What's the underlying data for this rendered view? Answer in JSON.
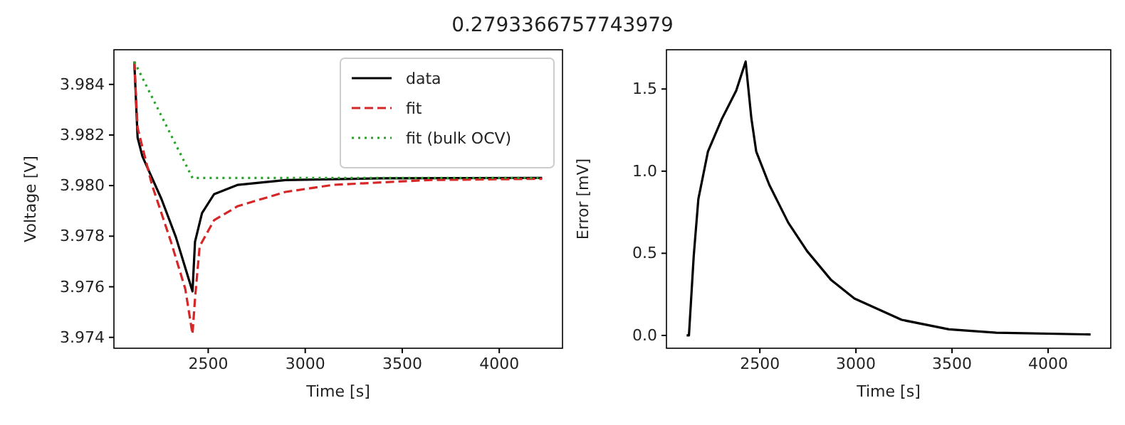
{
  "chart_data": [
    {
      "type": "line",
      "title": "0.2793366757743979",
      "xlabel": "Time [s]",
      "ylabel": "Voltage [V]",
      "xlim": [
        2014,
        4326
      ],
      "xticks": [
        2500,
        3000,
        3500,
        4000
      ],
      "ylim": [
        3.97357,
        3.98537
      ],
      "yticks": [
        {
          "value": 3.974,
          "label": "3.974"
        },
        {
          "value": 3.976,
          "label": "3.976"
        },
        {
          "value": 3.978,
          "label": "3.978"
        },
        {
          "value": 3.98,
          "label": "3.980"
        },
        {
          "value": 3.982,
          "label": "3.982"
        },
        {
          "value": 3.984,
          "label": "3.984"
        }
      ],
      "legend": "top right",
      "grid": false,
      "series": [
        {
          "name": "data",
          "color": "#000000",
          "line_style": "solid",
          "x": [
            2119,
            2136,
            2161,
            2259,
            2333,
            2419,
            2432,
            2468,
            2530,
            2653,
            2899,
            3391,
            4221
          ],
          "values": [
            3.9849,
            3.9819,
            3.98115,
            3.97947,
            3.97797,
            3.97582,
            3.97778,
            3.97891,
            3.97966,
            3.98003,
            3.98022,
            3.98029,
            3.9803
          ]
        },
        {
          "name": "fit",
          "color": "#d62728",
          "line_style": "dashed",
          "x": [
            2119,
            2136,
            2210,
            2308,
            2382,
            2419,
            2432,
            2456,
            2530,
            2653,
            2899,
            3145,
            3637,
            4221
          ],
          "values": [
            3.9849,
            3.98228,
            3.98003,
            3.97778,
            3.97591,
            3.97413,
            3.97554,
            3.9776,
            3.97863,
            3.97919,
            3.97975,
            3.98003,
            3.98022,
            3.98027
          ]
        },
        {
          "name": "fit (bulk OCV)",
          "color": "#2ca02c",
          "line_style": "dotted",
          "x": [
            2119,
            2419,
            4221
          ],
          "values": [
            3.9849,
            3.9803,
            3.9803
          ]
        }
      ]
    },
    {
      "type": "line",
      "xlabel": "Time [s]",
      "ylabel": "Error [mV]",
      "xlim": [
        2014,
        4326
      ],
      "xticks": [
        2500,
        3000,
        3500,
        4000
      ],
      "ylim": [
        -0.078,
        1.739
      ],
      "yticks": [
        {
          "value": 0,
          "label": "0.0"
        },
        {
          "value": 0.5,
          "label": "0.5"
        },
        {
          "value": 1,
          "label": "1.0"
        },
        {
          "value": 1.5,
          "label": "1.5"
        }
      ],
      "grid": false,
      "series": [
        {
          "color": "#000000",
          "line_style": "solid",
          "x": [
            2119,
            2131,
            2156,
            2180,
            2230,
            2303,
            2377,
            2426,
            2456,
            2481,
            2549,
            2648,
            2746,
            2869,
            2992,
            3238,
            3484,
            3730,
            4221
          ],
          "values": [
            0,
            0,
            0.485,
            0.83,
            1.12,
            1.32,
            1.49,
            1.667,
            1.32,
            1.12,
            0.917,
            0.686,
            0.513,
            0.34,
            0.225,
            0.095,
            0.037,
            0.017,
            0.006
          ]
        }
      ]
    }
  ]
}
